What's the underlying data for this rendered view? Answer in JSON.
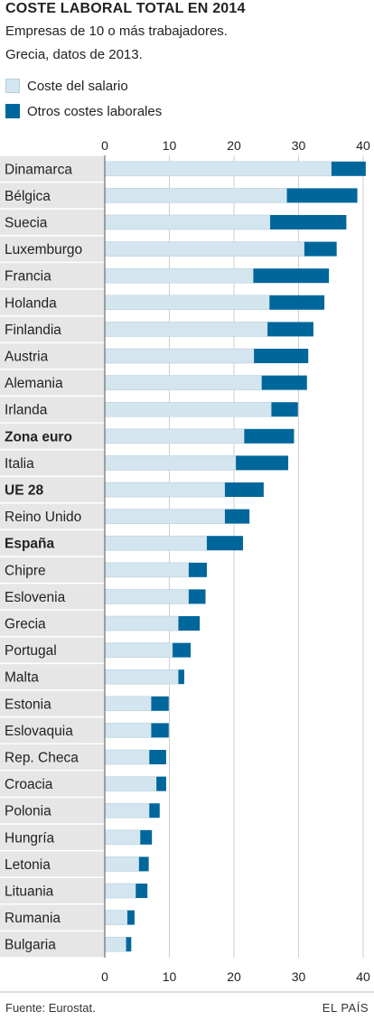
{
  "title": "COSTE LABORAL TOTAL EN 2014",
  "subtitle_1": "Empresas de 10 o más trabajadores.",
  "subtitle_2": "Grecia, datos de 2013.",
  "source": "Fuente: Eurostat.",
  "brand": "EL PAÍS",
  "colors": {
    "salario": "#d3e5ef",
    "otros": "#00679c",
    "label_bg": "#e6e6e6",
    "grid": "#cfcfcf"
  },
  "chart_data": {
    "type": "bar",
    "orientation": "horizontal",
    "stacked": true,
    "unit": "euros por hora",
    "xlim": [
      0,
      40
    ],
    "xticks": [
      "0",
      "10",
      "20",
      "30",
      "40"
    ],
    "grid": true,
    "legend_position": "top-left",
    "categories": [
      "Dinamarca",
      "Bélgica",
      "Suecia",
      "Luxemburgo",
      "Francia",
      "Holanda",
      "Finlandia",
      "Austria",
      "Alemania",
      "Irlanda",
      "Zona euro",
      "Italia",
      "UE 28",
      "Reino Unido",
      "España",
      "Chipre",
      "Eslovenia",
      "Grecia",
      "Portugal",
      "Malta",
      "Estonia",
      "Eslovaquia",
      "Rep. Checa",
      "Croacia",
      "Polonia",
      "Hungría",
      "Letonia",
      "Lituania",
      "Rumania",
      "Bulgaria"
    ],
    "highlighted": [
      "Zona euro",
      "UE 28",
      "España"
    ],
    "series": [
      {
        "name": "Coste del salario",
        "values": [
          35.1,
          28.2,
          25.6,
          30.9,
          23.0,
          25.5,
          25.2,
          23.1,
          24.3,
          25.8,
          21.6,
          20.3,
          18.6,
          18.6,
          15.8,
          13.0,
          13.0,
          11.4,
          10.5,
          11.4,
          7.2,
          7.2,
          6.9,
          8.0,
          6.9,
          5.5,
          5.3,
          4.8,
          3.5,
          3.3
        ]
      },
      {
        "name": "Otros costes laborales",
        "values": [
          5.3,
          10.9,
          11.8,
          5.0,
          11.7,
          8.5,
          7.1,
          8.4,
          7.0,
          4.1,
          7.7,
          8.1,
          6.0,
          3.8,
          5.6,
          2.8,
          2.6,
          3.3,
          2.8,
          0.9,
          2.7,
          2.7,
          2.6,
          1.5,
          1.6,
          1.8,
          1.5,
          1.8,
          1.1,
          0.8
        ]
      }
    ]
  }
}
